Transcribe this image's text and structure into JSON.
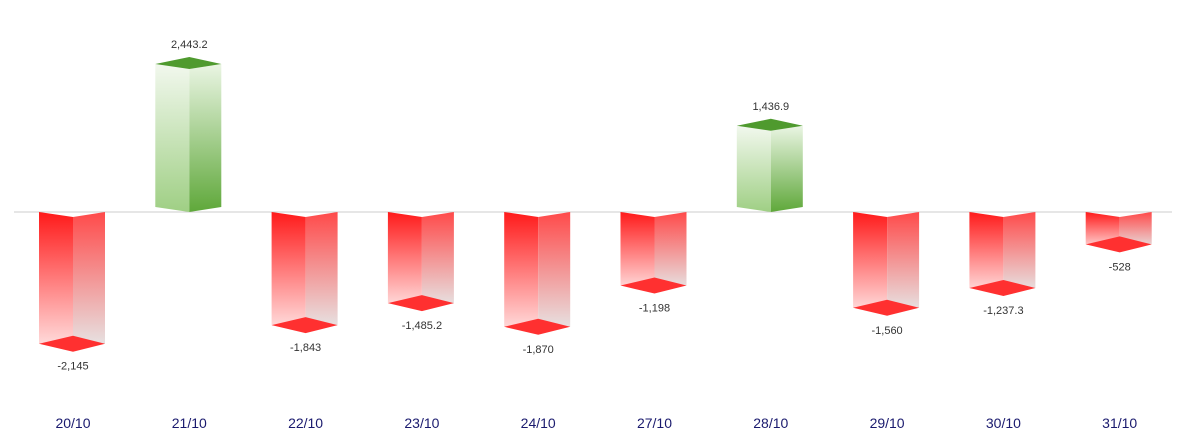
{
  "chart_data": {
    "type": "bar",
    "style": "3d-columns",
    "categories": [
      "20/10",
      "21/10",
      "22/10",
      "23/10",
      "24/10",
      "27/10",
      "28/10",
      "29/10",
      "30/10",
      "31/10"
    ],
    "values": [
      -2145,
      2443.2,
      -1843,
      -1485.2,
      -1870,
      -1198,
      1436.9,
      -1560,
      -1237.3,
      -528
    ],
    "value_labels": [
      "-2,145",
      "2,443.2",
      "-1,843",
      "-1,485.2",
      "-1,870",
      "-1,198",
      "1,436.9",
      "-1,560",
      "-1,237.3",
      "-528"
    ],
    "title": "",
    "xlabel": "",
    "ylabel": "",
    "grid": false,
    "legend": "none",
    "colors": {
      "positive": "#5fa83a",
      "positive_light": "#eef7e8",
      "negative": "#ff1a1a",
      "negative_light": "#e8e8e8",
      "baseline": "#cccccc",
      "category_text": "#1a1a6e",
      "value_text": "#333333"
    }
  }
}
